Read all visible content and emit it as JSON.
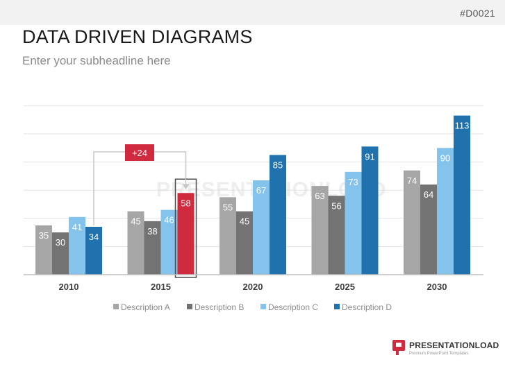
{
  "slide": {
    "code": "#D0021",
    "title": "DATA DRIVEN DIAGRAMS",
    "subtitle": "Enter your subheadline here"
  },
  "logo": {
    "name": "PRESENTATIONLOAD",
    "trademark": "®",
    "tagline": "Premium PowerPoint Templates"
  },
  "watermark": "PRESENTATIONLOAD",
  "chart_data": {
    "type": "bar",
    "categories": [
      "2010",
      "2015",
      "2020",
      "2025",
      "2030"
    ],
    "series": [
      {
        "name": "Description A",
        "color": "#a6a6a6",
        "values": [
          35,
          45,
          55,
          63,
          74
        ]
      },
      {
        "name": "Description B",
        "color": "#737373",
        "values": [
          30,
          38,
          45,
          56,
          64
        ]
      },
      {
        "name": "Description C",
        "color": "#83c3ec",
        "values": [
          41,
          46,
          67,
          73,
          90
        ]
      },
      {
        "name": "Description D",
        "color": "#1f72ae",
        "values": [
          34,
          58,
          85,
          91,
          113
        ]
      }
    ],
    "highlight": {
      "series": 3,
      "category": 1,
      "color": "#cf2a3d"
    },
    "annotation": {
      "text": "+24",
      "color": "#cf2a3d"
    },
    "ylim": [
      0,
      120
    ],
    "grid": true,
    "legend": "bottom",
    "title": "",
    "xlabel": "",
    "ylabel": ""
  }
}
